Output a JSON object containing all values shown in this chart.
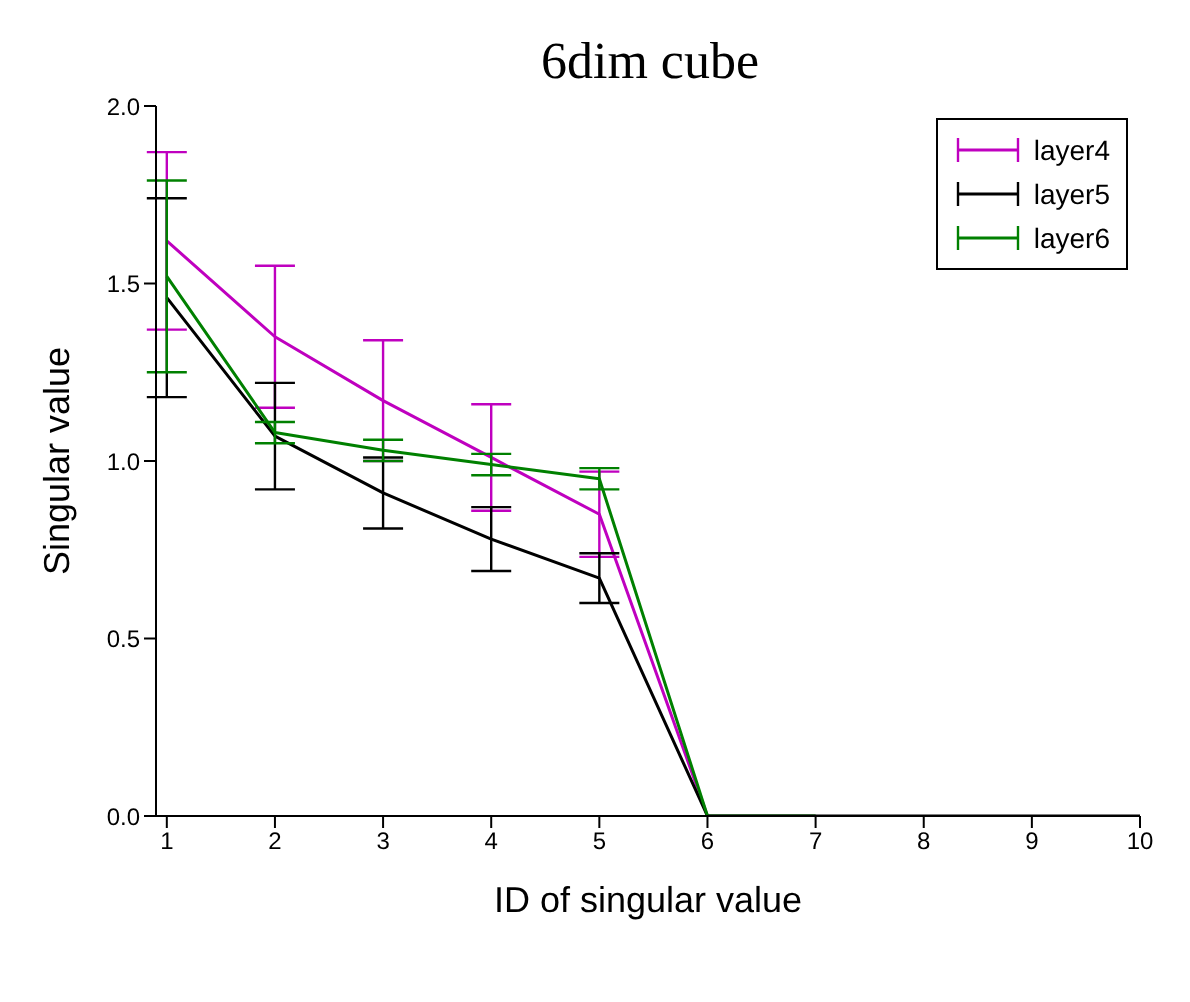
{
  "chart_data": {
    "type": "line",
    "title": "6dim cube",
    "xlabel": "ID of singular value",
    "ylabel": "Singular value",
    "x": [
      1,
      2,
      3,
      4,
      5,
      6,
      7,
      8,
      9,
      10
    ],
    "series": [
      {
        "name": "layer4",
        "color": "#bf00bf",
        "values": [
          1.62,
          1.35,
          1.17,
          1.01,
          0.85,
          0,
          0,
          null,
          null,
          null
        ],
        "errors": [
          0.25,
          0.2,
          0.17,
          0.15,
          0.12,
          null,
          null,
          null,
          null,
          null
        ]
      },
      {
        "name": "layer5",
        "color": "#000000",
        "values": [
          1.46,
          1.07,
          0.91,
          0.78,
          0.67,
          0,
          0,
          0,
          0,
          0
        ],
        "errors": [
          0.28,
          0.15,
          0.1,
          0.09,
          0.07,
          null,
          null,
          null,
          null,
          null
        ]
      },
      {
        "name": "layer6",
        "color": "#008000",
        "values": [
          1.52,
          1.08,
          1.03,
          0.99,
          0.95,
          0,
          0,
          null,
          null,
          null
        ],
        "errors": [
          0.27,
          0.03,
          0.03,
          0.03,
          0.03,
          null,
          null,
          null,
          null,
          null
        ]
      }
    ],
    "xlim": [
      0.9,
      10
    ],
    "xticks": [
      1,
      2,
      3,
      4,
      5,
      6,
      7,
      8,
      9,
      10
    ],
    "ylim": [
      0,
      2
    ],
    "yticks": [
      {
        "value": 0,
        "label": "0.0"
      },
      {
        "value": 0.5,
        "label": "0.5"
      },
      {
        "value": 1,
        "label": "1.0"
      },
      {
        "value": 1.5,
        "label": "1.5"
      },
      {
        "value": 2,
        "label": "2.0"
      }
    ],
    "legend": "top right",
    "grid": false,
    "marker": "none",
    "line_style": "solid"
  }
}
